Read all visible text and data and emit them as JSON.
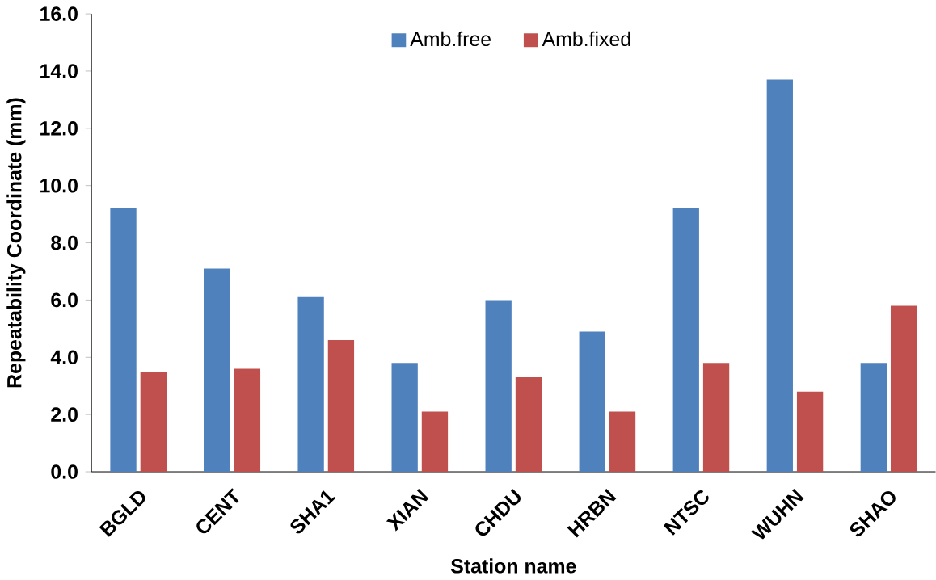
{
  "chart_data": {
    "type": "bar",
    "xlabel": "Station name",
    "ylabel": "Repeatability Coordinate (mm)",
    "categories": [
      "BGLD",
      "CENT",
      "SHA1",
      "XIAN",
      "CHDU",
      "HRBN",
      "NTSC",
      "WUHN",
      "SHAO"
    ],
    "series": [
      {
        "name": "Amb.free",
        "color": "#4f81bd",
        "values": [
          9.2,
          7.1,
          6.1,
          3.8,
          6.0,
          4.9,
          9.2,
          13.7,
          3.8
        ]
      },
      {
        "name": "Amb.fixed",
        "color": "#c0504d",
        "values": [
          3.5,
          3.6,
          4.6,
          2.1,
          3.3,
          2.1,
          3.8,
          2.8,
          5.8
        ]
      }
    ],
    "ylim": [
      0,
      16
    ],
    "yticks": [
      {
        "value": 0,
        "label": "0.0"
      },
      {
        "value": 2,
        "label": "2.0"
      },
      {
        "value": 4,
        "label": "4.0"
      },
      {
        "value": 6,
        "label": "6.0"
      },
      {
        "value": 8,
        "label": "8.0"
      },
      {
        "value": 10,
        "label": "10.0"
      },
      {
        "value": 12,
        "label": "12.0"
      },
      {
        "value": 14,
        "label": "14.0"
      },
      {
        "value": 16,
        "label": "16.0"
      }
    ],
    "legend": "top"
  }
}
